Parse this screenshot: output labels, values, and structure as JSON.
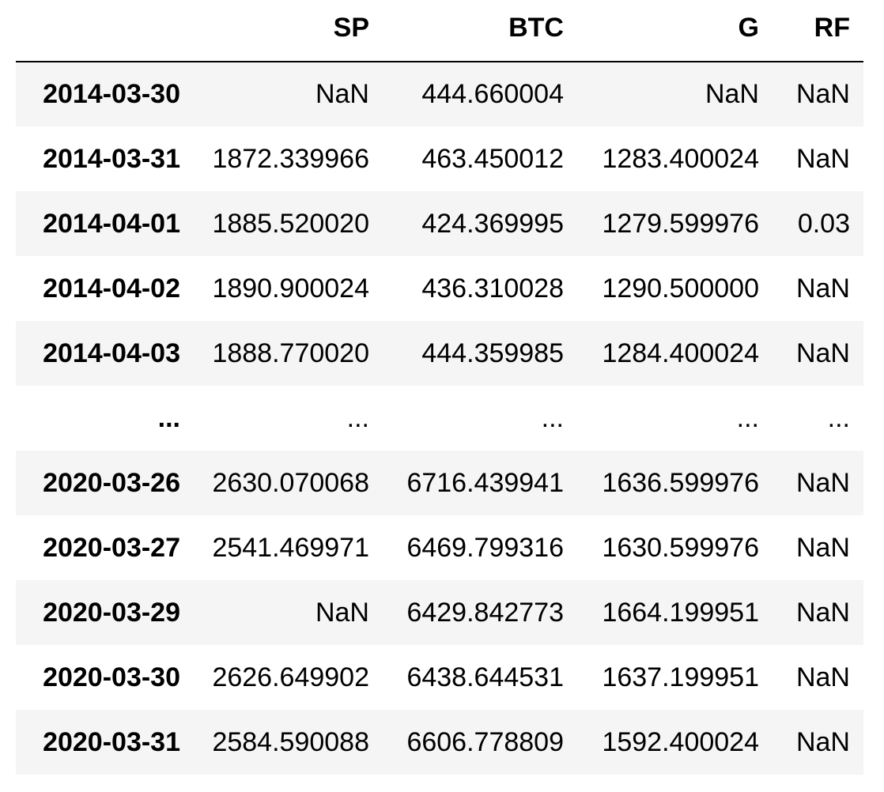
{
  "table": {
    "index_header": "",
    "columns": [
      "SP",
      "BTC",
      "G",
      "RF"
    ],
    "rows": [
      {
        "index": "2014-03-30",
        "cells": [
          "NaN",
          "444.660004",
          "NaN",
          "NaN"
        ]
      },
      {
        "index": "2014-03-31",
        "cells": [
          "1872.339966",
          "463.450012",
          "1283.400024",
          "NaN"
        ]
      },
      {
        "index": "2014-04-01",
        "cells": [
          "1885.520020",
          "424.369995",
          "1279.599976",
          "0.03"
        ]
      },
      {
        "index": "2014-04-02",
        "cells": [
          "1890.900024",
          "436.310028",
          "1290.500000",
          "NaN"
        ]
      },
      {
        "index": "2014-04-03",
        "cells": [
          "1888.770020",
          "444.359985",
          "1284.400024",
          "NaN"
        ]
      },
      {
        "index": "...",
        "cells": [
          "...",
          "...",
          "...",
          "..."
        ]
      },
      {
        "index": "2020-03-26",
        "cells": [
          "2630.070068",
          "6716.439941",
          "1636.599976",
          "NaN"
        ]
      },
      {
        "index": "2020-03-27",
        "cells": [
          "2541.469971",
          "6469.799316",
          "1630.599976",
          "NaN"
        ]
      },
      {
        "index": "2020-03-29",
        "cells": [
          "NaN",
          "6429.842773",
          "1664.199951",
          "NaN"
        ]
      },
      {
        "index": "2020-03-30",
        "cells": [
          "2626.649902",
          "6438.644531",
          "1637.199951",
          "NaN"
        ]
      },
      {
        "index": "2020-03-31",
        "cells": [
          "2584.590088",
          "6606.778809",
          "1592.400024",
          "NaN"
        ]
      }
    ]
  }
}
